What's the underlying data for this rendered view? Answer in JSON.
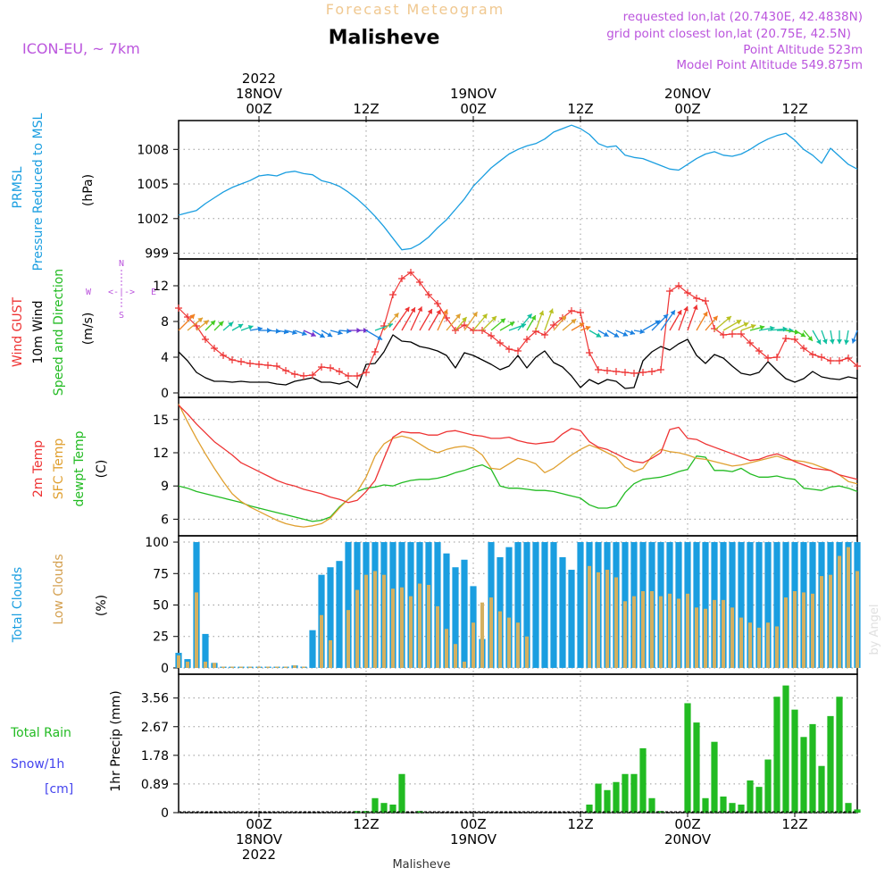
{
  "header": {
    "forecast_title": "Forecast Meteogram",
    "location": "Malisheve",
    "model": "ICON-EU, ~ 7km",
    "requested": "requested lon,lat (20.7430E, 42.4838N)",
    "grid_point": "grid point closest lon,lat (20.75E, 42.5N)",
    "point_alt": "Point Altitude 523m",
    "model_alt": "Model Point Altitude 549.875m"
  },
  "footer": {
    "location": "Malisheve",
    "credit": "by Angel"
  },
  "colors": {
    "pressure": "#1a9ee0",
    "gust": "#ee3333",
    "wind": "#000000",
    "dir": "#22bb22",
    "sfc": "#e0a030",
    "dewpt": "#22bb22",
    "total_clouds": "#1a9ee0",
    "low_clouds": "#d4b060",
    "rain": "#22bb22",
    "snow": "#4444ee",
    "meta": "#bb55dd"
  },
  "time_axis": {
    "top": [
      {
        "i": 9,
        "lines": [
          "2022",
          "18NOV",
          "00Z"
        ]
      },
      {
        "i": 21,
        "lines": [
          "12Z"
        ]
      },
      {
        "i": 33,
        "lines": [
          "19NOV",
          "00Z"
        ]
      },
      {
        "i": 45,
        "lines": [
          "12Z"
        ]
      },
      {
        "i": 57,
        "lines": [
          "20NOV",
          "00Z"
        ]
      },
      {
        "i": 69,
        "lines": [
          "12Z"
        ]
      }
    ],
    "bottom": [
      {
        "i": 9,
        "lines": [
          "00Z",
          "18NOV",
          "2022"
        ]
      },
      {
        "i": 21,
        "lines": [
          "12Z"
        ]
      },
      {
        "i": 33,
        "lines": [
          "00Z",
          "19NOV"
        ]
      },
      {
        "i": 45,
        "lines": [
          "12Z"
        ]
      },
      {
        "i": 57,
        "lines": [
          "00Z",
          "20NOV"
        ]
      },
      {
        "i": 69,
        "lines": [
          "12Z"
        ]
      }
    ]
  },
  "panels": {
    "pressure": {
      "labels": [
        "PRMSL",
        "Pressure Reduced to MSL"
      ],
      "unit": "(hPa)",
      "ticks": [
        "999",
        "1002",
        "1005",
        "1008"
      ],
      "ylim": [
        998.5,
        1010.5
      ]
    },
    "wind": {
      "labels": [
        "Wind GUST",
        "10m Wind",
        "Speed and Direction"
      ],
      "unit": "(m/s)",
      "ticks": [
        "0",
        "4",
        "8",
        "12"
      ],
      "ylim": [
        -0.5,
        15
      ],
      "compass": [
        "N",
        "S",
        "W",
        "E",
        "<-|->"
      ]
    },
    "temp": {
      "labels": [
        "2m Temp",
        "SFC Temp",
        "dewpt Temp"
      ],
      "unit": "(C)",
      "ticks": [
        "6",
        "9",
        "12",
        "15"
      ],
      "ylim": [
        4.5,
        17
      ]
    },
    "clouds": {
      "labels": [
        "Total Clouds",
        "Low Clouds"
      ],
      "unit": "(%)",
      "ticks": [
        "0",
        "25",
        "50",
        "75",
        "100"
      ],
      "ylim": [
        -5,
        105
      ]
    },
    "precip": {
      "labels": [
        "Total Rain",
        "Snow/1h",
        "[cm]"
      ],
      "axis_title": "1hr Precip (mm)",
      "ticks": [
        "0",
        "0.89",
        "1.78",
        "2.67",
        "3.56"
      ],
      "ylim": [
        0,
        4.3
      ]
    }
  },
  "chart_data": [
    {
      "type": "line",
      "title": "PRMSL Pressure Reduced to MSL",
      "ylabel": "hPa",
      "x": "hourly steps, 0 = 17NOV 15Z",
      "series": [
        {
          "name": "PRMSL",
          "values": [
            1002.3,
            1002.5,
            1002.7,
            1003.3,
            1003.8,
            1004.3,
            1004.7,
            1005.0,
            1005.3,
            1005.7,
            1005.8,
            1005.7,
            1006.0,
            1006.1,
            1005.9,
            1005.8,
            1005.3,
            1005.1,
            1004.8,
            1004.3,
            1003.7,
            1003.0,
            1002.2,
            1001.3,
            1000.3,
            999.3,
            999.4,
            999.8,
            1000.4,
            1001.2,
            1001.9,
            1002.8,
            1003.7,
            1004.8,
            1005.6,
            1006.4,
            1007.0,
            1007.6,
            1008.0,
            1008.3,
            1008.5,
            1008.9,
            1009.5,
            1009.8,
            1010.1,
            1009.8,
            1009.3,
            1008.5,
            1008.2,
            1008.3,
            1007.5,
            1007.3,
            1007.2,
            1006.9,
            1006.6,
            1006.3,
            1006.2,
            1006.7,
            1007.2,
            1007.6,
            1007.8,
            1007.5,
            1007.4,
            1007.6,
            1008.0,
            1008.5,
            1008.9,
            1009.2,
            1009.4,
            1008.8,
            1008.0,
            1007.5,
            1006.8,
            1008.1,
            1007.4,
            1006.7,
            1006.3
          ]
        }
      ]
    },
    {
      "type": "line",
      "title": "Wind GUST / 10m Wind Speed and Direction",
      "ylabel": "m/s",
      "series": [
        {
          "name": "Wind GUST",
          "values": [
            9.5,
            8.5,
            7.5,
            6.0,
            5.0,
            4.2,
            3.7,
            3.5,
            3.3,
            3.2,
            3.1,
            3.0,
            2.5,
            2.1,
            1.9,
            2.0,
            2.9,
            2.8,
            2.4,
            1.9,
            1.9,
            2.3,
            4.6,
            7.5,
            11.0,
            12.8,
            13.5,
            12.4,
            11.0,
            10.0,
            8.4,
            7.0,
            7.6,
            7.0,
            7.0,
            6.4,
            5.6,
            4.9,
            4.7,
            6.0,
            6.9,
            6.5,
            7.6,
            8.4,
            9.2,
            9.0,
            4.5,
            2.6,
            2.5,
            2.4,
            2.3,
            2.2,
            2.3,
            2.4,
            2.6,
            11.4,
            12.0,
            11.2,
            10.6,
            10.3,
            7.2,
            6.5,
            6.6,
            6.6,
            5.6,
            4.7,
            3.9,
            4.0,
            6.1,
            6.0,
            5.0,
            4.3,
            4.0,
            3.6,
            3.6,
            3.9,
            3.0
          ]
        },
        {
          "name": "10m Wind",
          "values": [
            4.6,
            3.6,
            2.3,
            1.7,
            1.3,
            1.3,
            1.2,
            1.3,
            1.2,
            1.2,
            1.2,
            1.0,
            0.9,
            1.3,
            1.5,
            1.7,
            1.2,
            1.2,
            1.0,
            1.3,
            0.6,
            3.2,
            3.3,
            4.6,
            6.5,
            5.8,
            5.7,
            5.2,
            5.0,
            4.7,
            4.2,
            2.8,
            4.5,
            4.2,
            3.7,
            3.2,
            2.6,
            3.0,
            4.2,
            2.8,
            4.0,
            4.7,
            3.4,
            2.9,
            1.9,
            0.6,
            1.5,
            1.0,
            1.5,
            1.3,
            0.5,
            0.6,
            3.6,
            4.6,
            5.2,
            4.8,
            5.5,
            6.0,
            4.2,
            3.3,
            4.3,
            3.9,
            3.0,
            2.2,
            2.0,
            2.3,
            3.5,
            2.5,
            1.6,
            1.2,
            1.6,
            2.4,
            1.8,
            1.6,
            1.5,
            1.8,
            1.6
          ]
        },
        {
          "name": "Direction (deg)",
          "values": [
            225,
            230,
            230,
            225,
            225,
            230,
            240,
            250,
            260,
            270,
            275,
            280,
            285,
            290,
            295,
            300,
            300,
            285,
            275,
            270,
            270,
            300,
            250,
            220,
            215,
            210,
            205,
            210,
            210,
            205,
            220,
            220,
            215,
            220,
            225,
            230,
            240,
            250,
            220,
            210,
            200,
            200,
            220,
            230,
            240,
            250,
            300,
            300,
            300,
            295,
            290,
            280,
            240,
            225,
            215,
            210,
            200,
            200,
            210,
            220,
            230,
            240,
            245,
            250,
            255,
            260,
            265,
            270,
            280,
            300,
            320,
            330,
            340,
            350,
            0,
            10,
            20
          ]
        }
      ]
    },
    {
      "type": "line",
      "title": "2m / SFC / dewpt Temp",
      "ylabel": "C",
      "series": [
        {
          "name": "2m Temp",
          "values": [
            16.3,
            15.5,
            14.6,
            13.8,
            13.0,
            12.4,
            11.8,
            11.1,
            10.7,
            10.3,
            9.9,
            9.5,
            9.2,
            9.0,
            8.7,
            8.5,
            8.3,
            8.0,
            7.8,
            7.5,
            7.7,
            8.5,
            9.5,
            11.5,
            13.4,
            13.9,
            13.8,
            13.8,
            13.6,
            13.6,
            13.9,
            14.0,
            13.8,
            13.6,
            13.5,
            13.3,
            13.3,
            13.4,
            13.1,
            12.9,
            12.8,
            12.9,
            13.0,
            13.7,
            14.2,
            14.0,
            13.0,
            12.5,
            12.3,
            11.9,
            11.5,
            11.2,
            11.1,
            11.5,
            12.0,
            14.1,
            14.3,
            13.3,
            13.2,
            12.8,
            12.5,
            12.2,
            11.9,
            11.6,
            11.3,
            11.4,
            11.7,
            11.9,
            11.6,
            11.2,
            10.9,
            10.6,
            10.5,
            10.4,
            10.0,
            9.8,
            9.6
          ]
        },
        {
          "name": "SFC Temp",
          "values": [
            16.4,
            14.8,
            13.3,
            11.9,
            10.6,
            9.4,
            8.3,
            7.6,
            7.1,
            6.7,
            6.3,
            5.9,
            5.6,
            5.4,
            5.3,
            5.4,
            5.6,
            6.1,
            7.0,
            7.8,
            8.5,
            9.8,
            11.7,
            12.8,
            13.3,
            13.5,
            13.3,
            12.8,
            12.3,
            12.0,
            12.3,
            12.5,
            12.6,
            12.4,
            11.8,
            10.6,
            10.5,
            11.0,
            11.5,
            11.3,
            11.0,
            10.2,
            10.6,
            11.2,
            11.8,
            12.3,
            12.7,
            12.4,
            12.0,
            11.6,
            10.7,
            10.3,
            10.6,
            11.7,
            12.3,
            12.1,
            12.0,
            11.8,
            11.5,
            11.4,
            11.2,
            11.0,
            10.8,
            10.9,
            11.1,
            11.3,
            11.5,
            11.7,
            11.4,
            11.3,
            11.2,
            11.0,
            10.7,
            10.4,
            10.0,
            9.4,
            9.2
          ]
        },
        {
          "name": "dewpt Temp",
          "values": [
            9.0,
            8.8,
            8.5,
            8.3,
            8.1,
            7.9,
            7.7,
            7.5,
            7.2,
            7.0,
            6.8,
            6.6,
            6.4,
            6.2,
            6.0,
            5.8,
            5.9,
            6.2,
            7.1,
            7.8,
            8.5,
            8.8,
            8.9,
            9.1,
            9.0,
            9.3,
            9.5,
            9.6,
            9.6,
            9.7,
            9.9,
            10.2,
            10.4,
            10.7,
            10.9,
            10.5,
            9.0,
            8.8,
            8.8,
            8.7,
            8.6,
            8.6,
            8.5,
            8.3,
            8.1,
            7.9,
            7.3,
            7.0,
            7.0,
            7.2,
            8.4,
            9.2,
            9.6,
            9.7,
            9.8,
            10.0,
            10.3,
            10.5,
            11.7,
            11.6,
            10.4,
            10.4,
            10.3,
            10.6,
            10.1,
            9.8,
            9.8,
            9.9,
            9.7,
            9.6,
            8.8,
            8.7,
            8.6,
            8.9,
            9.0,
            8.8,
            8.5
          ]
        }
      ]
    },
    {
      "type": "bar",
      "title": "Total Clouds / Low Clouds",
      "ylabel": "%",
      "series": [
        {
          "name": "Total Clouds",
          "values": [
            12,
            7,
            100,
            27,
            4,
            1,
            1,
            1,
            1,
            1,
            1,
            1,
            1,
            2,
            1,
            30,
            74,
            80,
            85,
            100,
            100,
            100,
            100,
            100,
            100,
            100,
            100,
            100,
            100,
            100,
            91,
            80,
            86,
            65,
            23,
            100,
            88,
            96,
            100,
            100,
            100,
            100,
            100,
            88,
            78,
            100,
            100,
            100,
            100,
            100,
            100,
            100,
            100,
            100,
            100,
            100,
            100,
            100,
            100,
            100,
            100,
            100,
            100,
            100,
            100,
            100,
            100,
            100,
            100,
            100,
            100,
            100,
            100,
            100,
            100,
            100,
            100
          ]
        },
        {
          "name": "Low Clouds",
          "values": [
            10,
            5,
            60,
            5,
            4,
            1,
            1,
            1,
            1,
            1,
            1,
            1,
            1,
            2,
            1,
            0,
            42,
            22,
            0,
            46,
            62,
            74,
            77,
            74,
            63,
            64,
            57,
            67,
            66,
            49,
            31,
            19,
            5,
            36,
            52,
            56,
            45,
            40,
            36,
            25,
            0,
            0,
            0,
            0,
            0,
            0,
            81,
            76,
            78,
            72,
            53,
            57,
            61,
            61,
            57,
            59,
            55,
            59,
            48,
            47,
            54,
            54,
            48,
            40,
            36,
            32,
            36,
            33,
            56,
            61,
            60,
            59,
            73,
            74,
            89,
            96,
            77
          ]
        }
      ]
    },
    {
      "type": "bar",
      "title": "1hr Precip (mm)",
      "ylabel": "mm",
      "series": [
        {
          "name": "Total Rain",
          "values": [
            0,
            0,
            0,
            0,
            0,
            0,
            0,
            0,
            0,
            0,
            0,
            0,
            0,
            0,
            0,
            0,
            0,
            0,
            0,
            0,
            0.05,
            0.05,
            0.45,
            0.3,
            0.25,
            1.2,
            0,
            0.05,
            0,
            0,
            0,
            0,
            0,
            0,
            0,
            0,
            0,
            0,
            0,
            0,
            0,
            0,
            0,
            0,
            0,
            0,
            0.25,
            0.9,
            0.7,
            0.95,
            1.2,
            1.2,
            2.0,
            0.45,
            0.05,
            0,
            0,
            3.4,
            2.8,
            0.45,
            2.2,
            0.5,
            0.3,
            0.25,
            1.0,
            0.8,
            1.65,
            3.6,
            3.95,
            3.2,
            2.35,
            2.75,
            1.45,
            3.0,
            3.6,
            0.3,
            0.1
          ]
        },
        {
          "name": "Snow/1h",
          "values": [
            0,
            0,
            0,
            0,
            0,
            0,
            0,
            0,
            0,
            0,
            0,
            0,
            0,
            0,
            0,
            0,
            0,
            0,
            0,
            0,
            0,
            0,
            0,
            0,
            0,
            0,
            0,
            0,
            0,
            0,
            0,
            0,
            0,
            0,
            0,
            0,
            0,
            0,
            0,
            0,
            0,
            0,
            0,
            0,
            0,
            0,
            0,
            0,
            0,
            0,
            0,
            0,
            0,
            0,
            0,
            0,
            0,
            0,
            0,
            0,
            0,
            0,
            0,
            0,
            0,
            0,
            0,
            0,
            0,
            0,
            0,
            0,
            0,
            0,
            0,
            0,
            0
          ]
        }
      ]
    }
  ]
}
